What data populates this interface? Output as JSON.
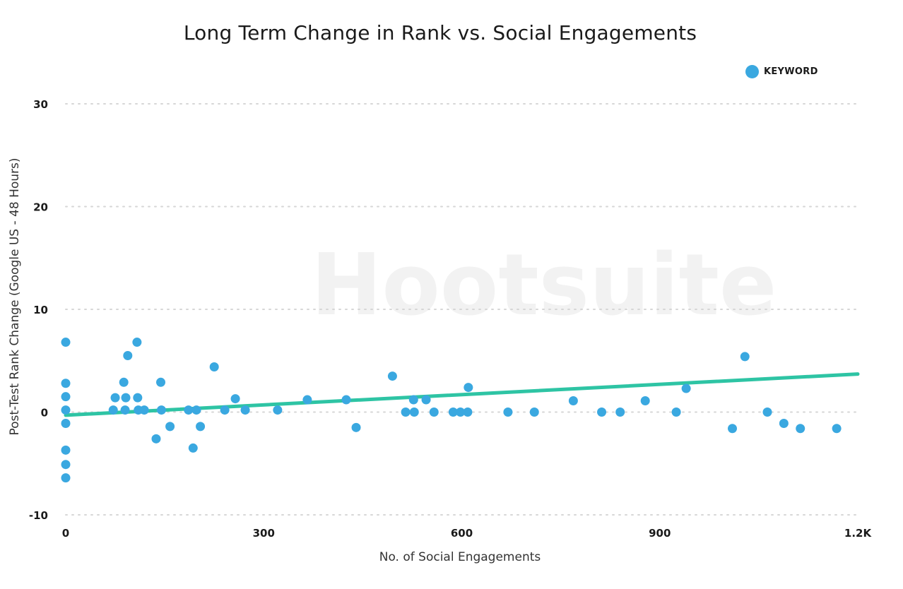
{
  "chart_data": {
    "type": "scatter",
    "title": "Long Term Change in Rank vs. Social Engagements",
    "xlabel": "No. of Social Engagements",
    "ylabel": "Post-Test Rank Change (Google US - 48 Hours)",
    "xlim": [
      0,
      1200
    ],
    "ylim": [
      -10,
      30
    ],
    "x_ticks": [
      0,
      300,
      600,
      900,
      1200
    ],
    "x_tick_labels": [
      "0",
      "300",
      "600",
      "900",
      "1.2K"
    ],
    "y_ticks": [
      30,
      20,
      10,
      0,
      -10
    ],
    "y_tick_labels": [
      "30",
      "20",
      "10",
      "0",
      "-10"
    ],
    "grid": "horizontal-dotted",
    "legend": {
      "position": "top-right",
      "entries": [
        "KEYWORD"
      ]
    },
    "watermark": "Hootsuite",
    "colors": {
      "points": "#3aa8e0",
      "trendline": "#2ec4a4",
      "grid": "#d6d6d6"
    },
    "series": [
      {
        "name": "KEYWORD",
        "points": [
          [
            0,
            6.8
          ],
          [
            0,
            2.8
          ],
          [
            0,
            1.5
          ],
          [
            0,
            0.2
          ],
          [
            0,
            -1.1
          ],
          [
            0,
            -3.7
          ],
          [
            0,
            -5.1
          ],
          [
            0,
            -6.4
          ],
          [
            72,
            0.2
          ],
          [
            75,
            1.4
          ],
          [
            88,
            2.9
          ],
          [
            90,
            0.2
          ],
          [
            91,
            1.4
          ],
          [
            94,
            5.5
          ],
          [
            108,
            6.8
          ],
          [
            109,
            1.4
          ],
          [
            110,
            0.2
          ],
          [
            119,
            0.2
          ],
          [
            137,
            -2.6
          ],
          [
            144,
            2.9
          ],
          [
            145,
            0.2
          ],
          [
            158,
            -1.4
          ],
          [
            186,
            0.2
          ],
          [
            193,
            -3.5
          ],
          [
            198,
            0.2
          ],
          [
            204,
            -1.4
          ],
          [
            225,
            4.4
          ],
          [
            241,
            0.2
          ],
          [
            257,
            1.3
          ],
          [
            272,
            0.2
          ],
          [
            321,
            0.2
          ],
          [
            366,
            1.2
          ],
          [
            425,
            1.2
          ],
          [
            440,
            -1.5
          ],
          [
            495,
            3.5
          ],
          [
            515,
            0
          ],
          [
            527,
            1.2
          ],
          [
            528,
            0
          ],
          [
            546,
            1.2
          ],
          [
            558,
            0
          ],
          [
            587,
            0
          ],
          [
            598,
            0
          ],
          [
            609,
            0
          ],
          [
            610,
            2.4
          ],
          [
            670,
            0
          ],
          [
            710,
            0
          ],
          [
            769,
            1.1
          ],
          [
            812,
            0
          ],
          [
            840,
            0
          ],
          [
            878,
            1.1
          ],
          [
            925,
            0
          ],
          [
            940,
            2.3
          ],
          [
            1010,
            -1.6
          ],
          [
            1029,
            5.4
          ],
          [
            1063,
            0
          ],
          [
            1088,
            -1.1
          ],
          [
            1113,
            -1.6
          ],
          [
            1168,
            -1.6
          ]
        ]
      }
    ],
    "trendline": {
      "x": [
        0,
        1200
      ],
      "y": [
        -0.3,
        3.7
      ]
    }
  }
}
